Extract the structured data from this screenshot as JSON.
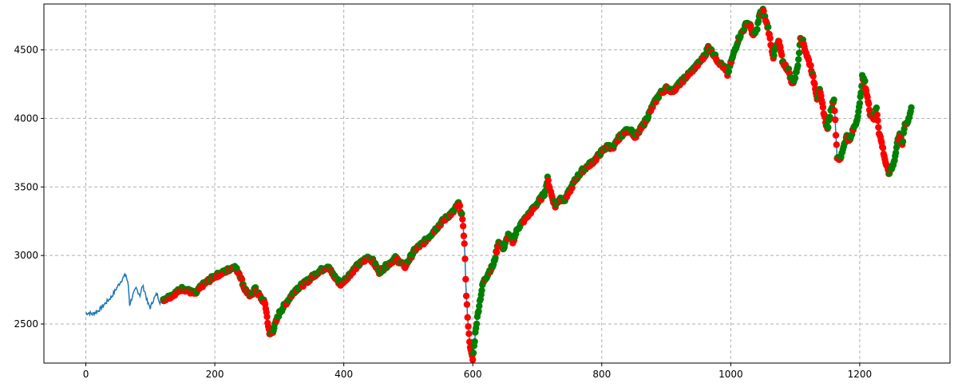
{
  "chart_data": {
    "type": "line",
    "title": "",
    "xlabel": "",
    "ylabel": "",
    "xlim": [
      -65,
      1340
    ],
    "ylim": [
      2215,
      4835
    ],
    "x_ticks": [
      0,
      200,
      400,
      600,
      800,
      1000,
      1200
    ],
    "y_ticks": [
      2500,
      3000,
      3500,
      4000,
      4500
    ],
    "x_tick_labels": [
      "0",
      "200",
      "400",
      "600",
      "800",
      "1000",
      "1200"
    ],
    "y_tick_labels": [
      "2500",
      "3000",
      "3500",
      "4000",
      "4500"
    ],
    "grid": true,
    "series": [
      {
        "style": "line",
        "color": "#1f77b4",
        "keypoints": [
          [
            0,
            2578
          ],
          [
            5,
            2582
          ],
          [
            10,
            2572
          ],
          [
            20,
            2600
          ],
          [
            30,
            2650
          ],
          [
            40,
            2700
          ],
          [
            50,
            2780
          ],
          [
            58,
            2840
          ],
          [
            62,
            2860
          ],
          [
            66,
            2780
          ],
          [
            68,
            2640
          ],
          [
            72,
            2700
          ],
          [
            78,
            2760
          ],
          [
            84,
            2710
          ],
          [
            88,
            2780
          ],
          [
            92,
            2730
          ],
          [
            96,
            2650
          ],
          [
            100,
            2620
          ],
          [
            105,
            2680
          ],
          [
            110,
            2720
          ],
          [
            115,
            2660
          ],
          [
            120,
            2680
          ],
          [
            130,
            2700
          ],
          [
            150,
            2760
          ],
          [
            170,
            2720
          ],
          [
            180,
            2780
          ],
          [
            200,
            2850
          ],
          [
            215,
            2880
          ],
          [
            230,
            2920
          ],
          [
            238,
            2870
          ],
          [
            246,
            2760
          ],
          [
            255,
            2700
          ],
          [
            262,
            2760
          ],
          [
            270,
            2700
          ],
          [
            278,
            2650
          ],
          [
            285,
            2420
          ],
          [
            290,
            2450
          ],
          [
            300,
            2580
          ],
          [
            310,
            2650
          ],
          [
            325,
            2750
          ],
          [
            340,
            2800
          ],
          [
            360,
            2880
          ],
          [
            375,
            2920
          ],
          [
            385,
            2850
          ],
          [
            395,
            2790
          ],
          [
            405,
            2840
          ],
          [
            420,
            2920
          ],
          [
            438,
            2990
          ],
          [
            445,
            2960
          ],
          [
            455,
            2880
          ],
          [
            470,
            2940
          ],
          [
            480,
            2980
          ],
          [
            495,
            2920
          ],
          [
            510,
            3040
          ],
          [
            525,
            3100
          ],
          [
            540,
            3180
          ],
          [
            555,
            3260
          ],
          [
            570,
            3320
          ],
          [
            578,
            3380
          ],
          [
            583,
            3300
          ],
          [
            587,
            3100
          ],
          [
            590,
            2700
          ],
          [
            594,
            2420
          ],
          [
            597,
            2300
          ],
          [
            600,
            2240
          ],
          [
            605,
            2480
          ],
          [
            610,
            2640
          ],
          [
            616,
            2800
          ],
          [
            625,
            2880
          ],
          [
            632,
            2930
          ],
          [
            640,
            3100
          ],
          [
            648,
            3050
          ],
          [
            655,
            3150
          ],
          [
            662,
            3100
          ],
          [
            670,
            3200
          ],
          [
            680,
            3260
          ],
          [
            690,
            3320
          ],
          [
            700,
            3380
          ],
          [
            712,
            3460
          ],
          [
            716,
            3560
          ],
          [
            722,
            3440
          ],
          [
            728,
            3360
          ],
          [
            735,
            3420
          ],
          [
            742,
            3400
          ],
          [
            750,
            3470
          ],
          [
            760,
            3560
          ],
          [
            770,
            3620
          ],
          [
            780,
            3660
          ],
          [
            790,
            3700
          ],
          [
            800,
            3760
          ],
          [
            810,
            3800
          ],
          [
            818,
            3780
          ],
          [
            825,
            3850
          ],
          [
            835,
            3900
          ],
          [
            845,
            3920
          ],
          [
            852,
            3860
          ],
          [
            860,
            3920
          ],
          [
            870,
            4000
          ],
          [
            880,
            4100
          ],
          [
            890,
            4180
          ],
          [
            900,
            4220
          ],
          [
            910,
            4200
          ],
          [
            920,
            4250
          ],
          [
            930,
            4300
          ],
          [
            940,
            4350
          ],
          [
            950,
            4400
          ],
          [
            960,
            4460
          ],
          [
            965,
            4520
          ],
          [
            972,
            4480
          ],
          [
            980,
            4420
          ],
          [
            988,
            4380
          ],
          [
            995,
            4320
          ],
          [
            1000,
            4400
          ],
          [
            1005,
            4480
          ],
          [
            1012,
            4580
          ],
          [
            1020,
            4650
          ],
          [
            1025,
            4700
          ],
          [
            1030,
            4680
          ],
          [
            1035,
            4600
          ],
          [
            1040,
            4640
          ],
          [
            1045,
            4760
          ],
          [
            1050,
            4790
          ],
          [
            1055,
            4700
          ],
          [
            1058,
            4660
          ],
          [
            1062,
            4550
          ],
          [
            1066,
            4450
          ],
          [
            1070,
            4520
          ],
          [
            1075,
            4560
          ],
          [
            1080,
            4420
          ],
          [
            1085,
            4380
          ],
          [
            1090,
            4350
          ],
          [
            1095,
            4250
          ],
          [
            1100,
            4300
          ],
          [
            1105,
            4420
          ],
          [
            1108,
            4600
          ],
          [
            1112,
            4560
          ],
          [
            1118,
            4460
          ],
          [
            1124,
            4380
          ],
          [
            1130,
            4250
          ],
          [
            1134,
            4150
          ],
          [
            1138,
            4200
          ],
          [
            1142,
            4100
          ],
          [
            1146,
            4000
          ],
          [
            1150,
            3920
          ],
          [
            1155,
            4050
          ],
          [
            1160,
            4150
          ],
          [
            1165,
            3720
          ],
          [
            1170,
            3700
          ],
          [
            1175,
            3800
          ],
          [
            1180,
            3870
          ],
          [
            1185,
            3840
          ],
          [
            1190,
            3920
          ],
          [
            1195,
            3980
          ],
          [
            1200,
            4100
          ],
          [
            1204,
            4300
          ],
          [
            1208,
            4260
          ],
          [
            1212,
            4150
          ],
          [
            1216,
            4040
          ],
          [
            1222,
            4000
          ],
          [
            1226,
            4080
          ],
          [
            1230,
            3900
          ],
          [
            1235,
            3800
          ],
          [
            1240,
            3680
          ],
          [
            1245,
            3600
          ],
          [
            1250,
            3640
          ],
          [
            1255,
            3720
          ],
          [
            1258,
            3820
          ],
          [
            1262,
            3900
          ],
          [
            1266,
            3800
          ],
          [
            1270,
            3960
          ],
          [
            1275,
            3980
          ],
          [
            1280,
            4080
          ]
        ]
      },
      {
        "style": "markers",
        "color": "#ff0000",
        "marker": "circle",
        "x_range": [
          120,
          1280
        ]
      },
      {
        "style": "markers",
        "color": "#008000",
        "marker": "circle",
        "x_range": [
          120,
          1280
        ]
      }
    ]
  }
}
